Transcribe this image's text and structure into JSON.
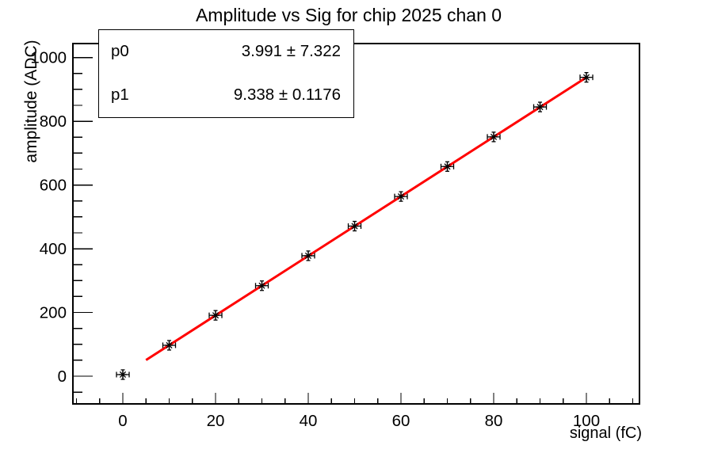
{
  "title": "Amplitude vs Sig for chip 2025 chan 0",
  "stats": {
    "rows": [
      {
        "name": "p0",
        "value": "3.991 ± 7.322"
      },
      {
        "name": "p1",
        "value": "9.338 ± 0.1176"
      }
    ]
  },
  "chart_data": {
    "type": "scatter",
    "title": "Amplitude vs Sig for chip 2025 chan 0",
    "xlabel": "signal (fC)",
    "ylabel": "amplitude (ADC)",
    "xlim": [
      -10.77,
      111.45
    ],
    "ylim": [
      -87,
      1044
    ],
    "grid": false,
    "legend": "none",
    "x_major_ticks": [
      0,
      20,
      40,
      60,
      80,
      100
    ],
    "x_tick_labels": [
      "0",
      "20",
      "40",
      "60",
      "80",
      "100"
    ],
    "x_minor_step": 5,
    "y_major_ticks": [
      0,
      200,
      400,
      600,
      800,
      1000
    ],
    "y_tick_labels": [
      "0",
      "200",
      "400",
      "600",
      "800",
      "1000"
    ],
    "y_minor_step": 50,
    "points": {
      "x": [
        0,
        10,
        20,
        30,
        40,
        50,
        60,
        70,
        80,
        90,
        100
      ],
      "y": [
        5,
        97,
        191,
        284,
        378,
        471,
        564,
        658,
        751,
        845,
        938
      ]
    },
    "marker": "asterisk-with-error-bars",
    "fit": {
      "p0": 3.991,
      "p0_err": 7.322,
      "p1": 9.338,
      "p1_err": 0.1176,
      "x_range": [
        5,
        100
      ]
    },
    "colors": {
      "fit_line": "#ff0000",
      "marker": "#000000",
      "axis": "#000000",
      "background": "#ffffff"
    }
  }
}
